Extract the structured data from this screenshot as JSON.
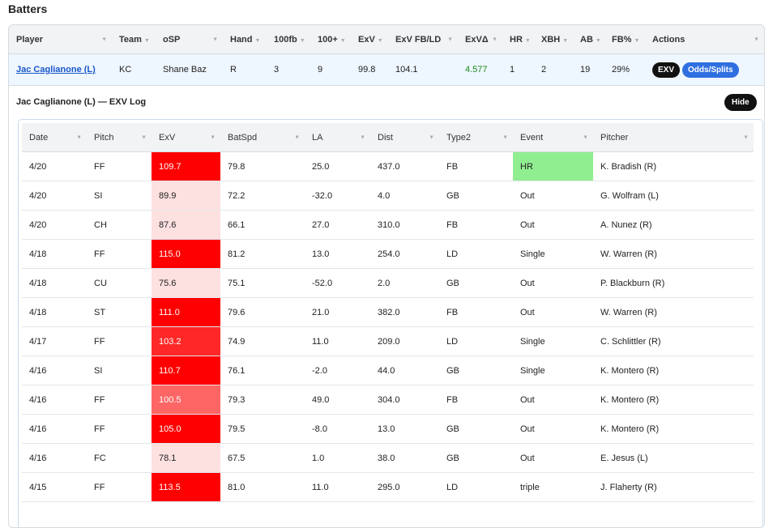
{
  "header": {
    "title": "Batters"
  },
  "batters": {
    "columns": [
      "Player",
      "Team",
      "oSP",
      "Hand",
      "100fb",
      "100+",
      "ExV",
      "ExV FB/LD",
      "ExVΔ",
      "HR",
      "XBH",
      "AB",
      "FB%",
      "Actions"
    ],
    "rows": [
      [
        "Jac Caglianone (L)",
        "KC",
        "Shane Baz",
        "R",
        "3",
        "9",
        "99.8",
        "104.1",
        "4.577",
        "1",
        "2",
        "19",
        "29%"
      ]
    ],
    "actions": [
      "EXV",
      "Odds/Splits"
    ]
  },
  "log": {
    "title": "Jac Caglianone (L) — EXV Log",
    "hide": "Hide",
    "columns": [
      "Date",
      "Pitch",
      "ExV",
      "BatSpd",
      "LA",
      "Dist",
      "Type2",
      "Event",
      "Pitcher"
    ],
    "rows": [
      [
        "4/20",
        "FF",
        "109.7",
        "79.8",
        "25.0",
        "437.0",
        "FB",
        "HR",
        "K. Bradish (R)"
      ],
      [
        "4/20",
        "SI",
        "89.9",
        "72.2",
        "-32.0",
        "4.0",
        "GB",
        "Out",
        "G. Wolfram (L)"
      ],
      [
        "4/20",
        "CH",
        "87.6",
        "66.1",
        "27.0",
        "310.0",
        "FB",
        "Out",
        "A. Nunez (R)"
      ],
      [
        "4/18",
        "FF",
        "115.0",
        "81.2",
        "13.0",
        "254.0",
        "LD",
        "Single",
        "W. Warren (R)"
      ],
      [
        "4/18",
        "CU",
        "75.6",
        "75.1",
        "-52.0",
        "2.0",
        "GB",
        "Out",
        "P. Blackburn (R)"
      ],
      [
        "4/18",
        "ST",
        "111.0",
        "79.6",
        "21.0",
        "382.0",
        "FB",
        "Out",
        "W. Warren (R)"
      ],
      [
        "4/17",
        "FF",
        "103.2",
        "74.9",
        "11.0",
        "209.0",
        "LD",
        "Single",
        "C. Schlittler (R)"
      ],
      [
        "4/16",
        "SI",
        "110.7",
        "76.1",
        "-2.0",
        "44.0",
        "GB",
        "Single",
        "K. Montero (R)"
      ],
      [
        "4/16",
        "FF",
        "100.5",
        "79.3",
        "49.0",
        "304.0",
        "FB",
        "Out",
        "K. Montero (R)"
      ],
      [
        "4/16",
        "FF",
        "105.0",
        "79.5",
        "-8.0",
        "13.0",
        "GB",
        "Out",
        "K. Montero (R)"
      ],
      [
        "4/16",
        "FC",
        "78.1",
        "67.5",
        "1.0",
        "38.0",
        "GB",
        "Out",
        "E. Jesus (L)"
      ],
      [
        "4/15",
        "FF",
        "113.5",
        "81.0",
        "11.0",
        "295.0",
        "LD",
        "triple",
        "J. Flaherty (R)"
      ]
    ]
  }
}
